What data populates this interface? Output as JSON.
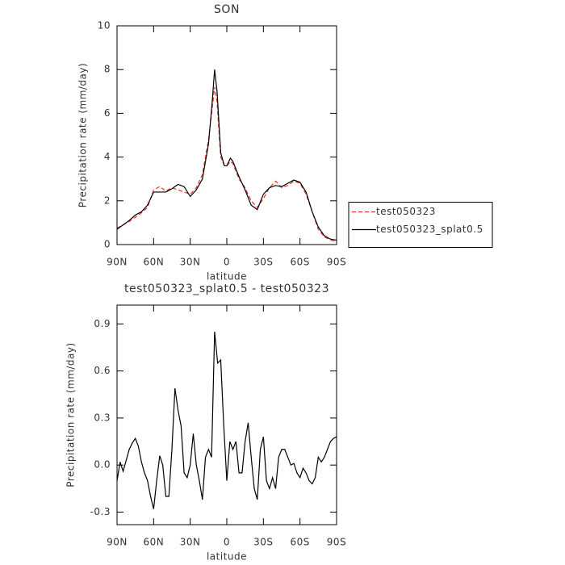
{
  "chart_data": [
    {
      "type": "line",
      "title": "SON",
      "x_label": "latitude",
      "y_label": "Precipitation rate (mm/day)",
      "x": [
        90,
        85,
        80,
        75,
        70,
        65,
        60,
        55,
        50,
        45,
        40,
        35,
        30,
        25,
        20,
        15,
        12,
        10,
        8,
        5,
        2,
        0,
        -3,
        -5,
        -10,
        -15,
        -20,
        -25,
        -30,
        -35,
        -40,
        -45,
        -50,
        -55,
        -60,
        -65,
        -70,
        -75,
        -80,
        -85,
        -90
      ],
      "series": [
        {
          "name": "test050323",
          "color": "#e8322a",
          "style": "dashed",
          "values": [
            0.75,
            0.9,
            1.05,
            1.25,
            1.45,
            1.7,
            2.5,
            2.65,
            2.45,
            2.6,
            2.5,
            2.4,
            2.3,
            2.6,
            3.2,
            4.8,
            6.2,
            7.2,
            6.5,
            4.0,
            3.6,
            3.6,
            3.8,
            3.7,
            3.0,
            2.6,
            2.0,
            1.7,
            2.1,
            2.6,
            2.9,
            2.6,
            2.7,
            2.9,
            2.8,
            2.3,
            1.5,
            0.7,
            0.35,
            0.2,
            0.15
          ]
        },
        {
          "name": "test050323_splat0.5",
          "color": "#000000",
          "style": "solid",
          "values": [
            0.7,
            0.9,
            1.1,
            1.35,
            1.5,
            1.8,
            2.4,
            2.4,
            2.4,
            2.55,
            2.75,
            2.65,
            2.2,
            2.5,
            3.0,
            4.6,
            6.5,
            8.0,
            7.0,
            4.2,
            3.6,
            3.6,
            3.95,
            3.8,
            3.1,
            2.5,
            1.8,
            1.6,
            2.3,
            2.6,
            2.7,
            2.65,
            2.8,
            2.95,
            2.85,
            2.4,
            1.5,
            0.8,
            0.4,
            0.25,
            0.2
          ]
        }
      ],
      "xlim": [
        90,
        -90
      ],
      "xticks": [
        {
          "value": 90,
          "label": "90N"
        },
        {
          "value": 60,
          "label": "60N"
        },
        {
          "value": 30,
          "label": "30N"
        },
        0,
        {
          "value": -30,
          "label": "30S"
        },
        {
          "value": -60,
          "label": "60S"
        },
        {
          "value": -90,
          "label": "90S"
        }
      ],
      "ylim": [
        0,
        10
      ],
      "yticks": [
        0,
        2,
        4,
        6,
        8,
        10
      ],
      "legend": "right"
    },
    {
      "type": "line",
      "title": "test050323_splat0.5 - test050323",
      "x_label": "latitude",
      "y_label": "Precipitation rate (mm/day)",
      "x": [
        90,
        87.5,
        85,
        82.5,
        80,
        77.5,
        75,
        72.5,
        70,
        67.5,
        65,
        62.5,
        60,
        57.5,
        55,
        52.5,
        50,
        47.5,
        45,
        42.5,
        40,
        37.5,
        35,
        32.5,
        30,
        27.5,
        25,
        22.5,
        20,
        17.5,
        15,
        12.5,
        10,
        7.5,
        5,
        2.5,
        0,
        -2.5,
        -5,
        -7.5,
        -10,
        -12.5,
        -15,
        -17.5,
        -20,
        -22.5,
        -25,
        -27.5,
        -30,
        -32.5,
        -35,
        -37.5,
        -40,
        -42.5,
        -45,
        -47.5,
        -50,
        -52.5,
        -55,
        -57.5,
        -60,
        -62.5,
        -65,
        -67.5,
        -70,
        -72.5,
        -75,
        -77.5,
        -80,
        -82.5,
        -85,
        -87.5,
        -90
      ],
      "series": [
        {
          "color": "#000000",
          "style": "solid",
          "values": [
            -0.1,
            0.02,
            -0.04,
            0.03,
            0.1,
            0.14,
            0.17,
            0.12,
            0.02,
            -0.05,
            -0.1,
            -0.2,
            -0.28,
            -0.1,
            0.06,
            0.0,
            -0.2,
            -0.2,
            0.1,
            0.49,
            0.35,
            0.25,
            -0.05,
            -0.08,
            0.0,
            0.2,
            0.0,
            -0.1,
            -0.22,
            0.05,
            0.1,
            0.05,
            0.85,
            0.65,
            0.67,
            0.25,
            -0.1,
            0.15,
            0.1,
            0.15,
            -0.05,
            -0.05,
            0.15,
            0.27,
            0.05,
            -0.15,
            -0.22,
            0.1,
            0.18,
            -0.1,
            -0.15,
            -0.08,
            -0.15,
            0.05,
            0.1,
            0.1,
            0.05,
            0.0,
            0.01,
            -0.05,
            -0.08,
            -0.02,
            -0.05,
            -0.1,
            -0.12,
            -0.08,
            0.05,
            0.02,
            0.05,
            0.1,
            0.15,
            0.17,
            0.18
          ]
        }
      ],
      "xlim": [
        90,
        -90
      ],
      "xticks": [
        {
          "value": 90,
          "label": "90N"
        },
        {
          "value": 60,
          "label": "60N"
        },
        {
          "value": 30,
          "label": "30N"
        },
        0,
        {
          "value": -30,
          "label": "30S"
        },
        {
          "value": -60,
          "label": "60S"
        },
        {
          "value": -90,
          "label": "90S"
        }
      ],
      "ylim": [
        -0.38,
        1.02
      ],
      "yticks": [
        -0.3,
        {
          "value": 0,
          "label": "0.0"
        },
        0.3,
        0.6,
        0.9
      ]
    }
  ]
}
